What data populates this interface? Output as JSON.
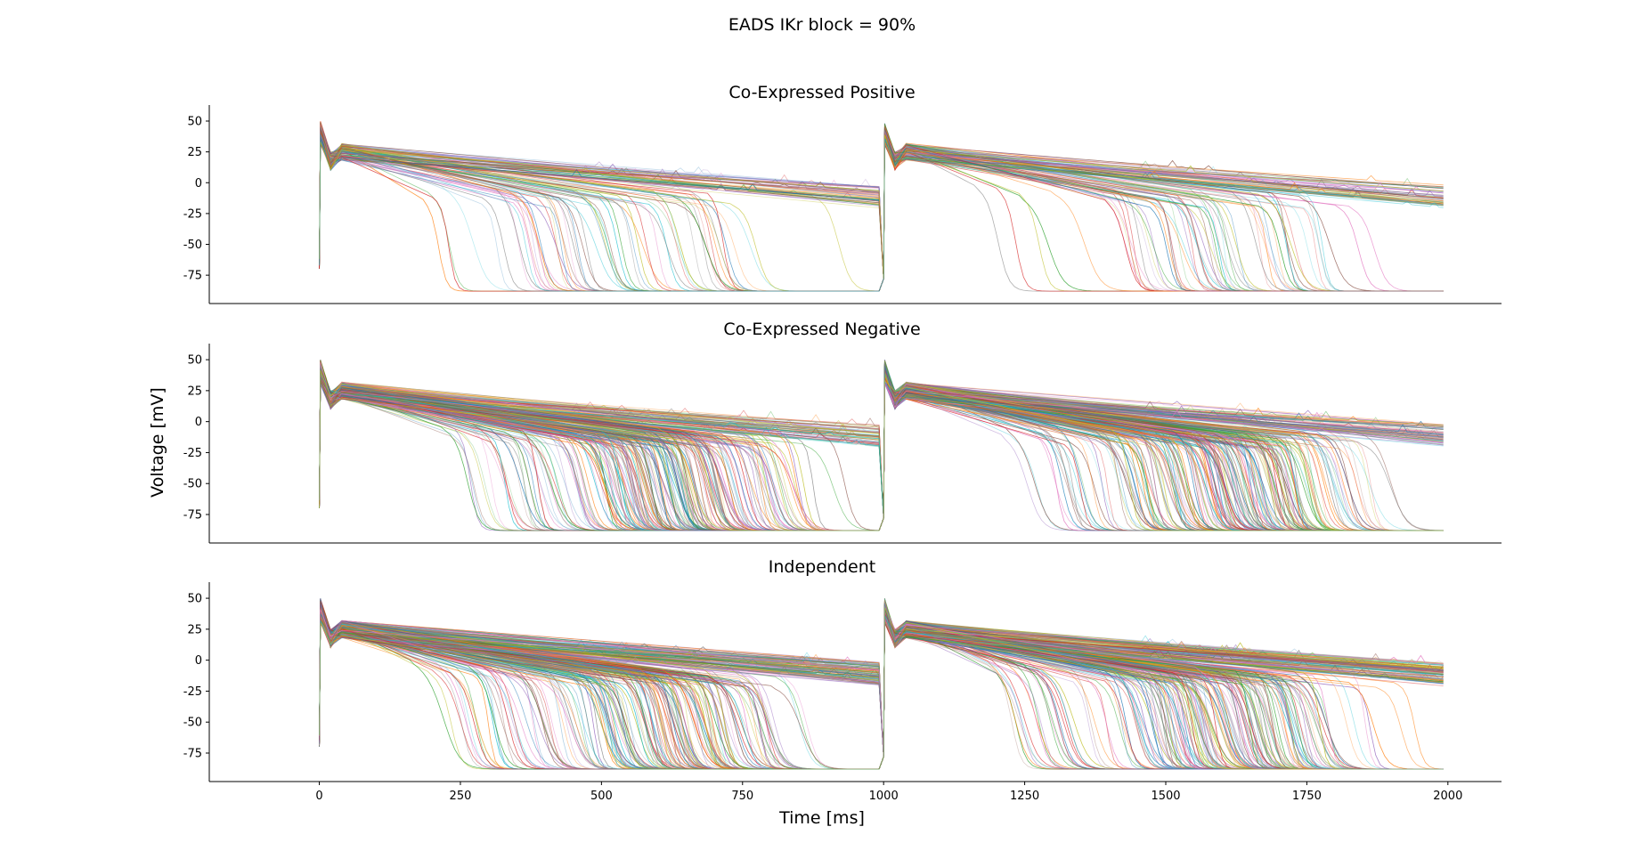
{
  "figure_title": "EADS IKr block = 90%",
  "colors": [
    "#1f77b4",
    "#ff7f0e",
    "#2ca02c",
    "#d62728",
    "#9467bd",
    "#8c564b",
    "#e377c2",
    "#7f7f7f",
    "#bcbd22",
    "#17becf"
  ],
  "chart_data": [
    {
      "type": "line",
      "title": "Co-Expressed Positive",
      "xlabel": "",
      "ylabel": "",
      "xlim": [
        -195,
        2095
      ],
      "ylim": [
        -98,
        63
      ],
      "yticks": [
        50,
        25,
        0,
        -25,
        -50,
        -75
      ],
      "xticks": [],
      "grid": false,
      "legend": "none",
      "n_traces": 110,
      "beats_ms": [
        0,
        1000
      ],
      "beat_duration_ms": 995,
      "resting_potential_mv": -88,
      "peak_mv": 50,
      "apd90_range_ms": [
        210,
        995
      ],
      "frac_no_repolarization": 0.45
    },
    {
      "type": "line",
      "title": "Co-Expressed Negative",
      "xlabel": "",
      "ylabel": "Voltage [mV]",
      "xlim": [
        -195,
        2095
      ],
      "ylim": [
        -98,
        63
      ],
      "yticks": [
        50,
        25,
        0,
        -25,
        -50,
        -75
      ],
      "xticks": [],
      "grid": false,
      "legend": "none",
      "n_traces": 300,
      "beats_ms": [
        0,
        1000
      ],
      "beat_duration_ms": 995,
      "resting_potential_mv": -88,
      "peak_mv": 50,
      "apd90_range_ms": [
        270,
        995
      ],
      "frac_no_repolarization": 0.2
    },
    {
      "type": "line",
      "title": "Independent",
      "xlabel": "Time [ms]",
      "ylabel": "",
      "xlim": [
        -195,
        2095
      ],
      "ylim": [
        -98,
        63
      ],
      "yticks": [
        50,
        25,
        0,
        -25,
        -50,
        -75
      ],
      "xticks": [
        0,
        250,
        500,
        750,
        1000,
        1250,
        1500,
        1750,
        2000
      ],
      "grid": false,
      "legend": "none",
      "n_traces": 300,
      "beats_ms": [
        0,
        1000
      ],
      "beat_duration_ms": 995,
      "resting_potential_mv": -88,
      "peak_mv": 50,
      "apd90_range_ms": [
        240,
        995
      ],
      "frac_no_repolarization": 0.3
    }
  ]
}
